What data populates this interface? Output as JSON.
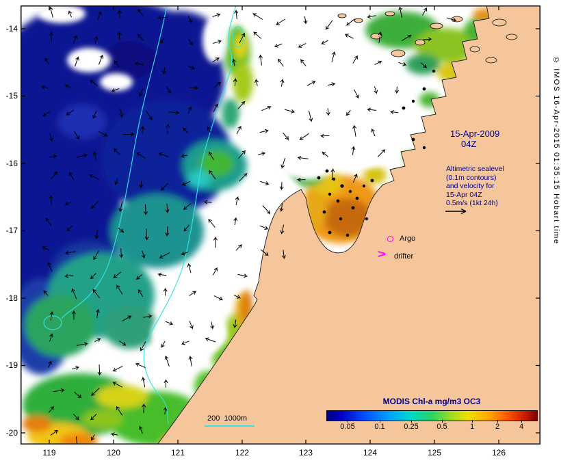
{
  "map": {
    "date_annotation": {
      "line1": "15-Apr-2009",
      "line2": "04Z"
    },
    "info_annotation": "Altimetric sealevel\n(0.1m contours)\nand velocity for\n15-Apr 04Z\n0.5m/s (1kt 24h)",
    "markers": {
      "argo": "Argo",
      "drifter": "drifter",
      "drifter_symbol": ">"
    },
    "scale_legend": "200  1000m"
  },
  "axes": {
    "y_ticks": [
      "-14",
      "-15",
      "-16",
      "-17",
      "-18",
      "-19",
      "-20"
    ],
    "x_ticks": [
      "119",
      "120",
      "121",
      "122",
      "123",
      "124",
      "125",
      "126"
    ]
  },
  "colorbar": {
    "title": "MODIS Chl-a mg/m3 OC3",
    "tick_labels": [
      "0.05",
      "0.1",
      "0.25",
      "0.5",
      "1",
      "2",
      "4"
    ]
  },
  "credit": "© IMOS 16-Apr-2015 01:35:15 Hobart time",
  "colors": {
    "land": "#f5c69b",
    "ocean_no_data": "#ffffff",
    "bathymetry_contour": "#35e3e3",
    "marker_magenta": "#ff00ff",
    "annotation_navy": "#00008b"
  }
}
